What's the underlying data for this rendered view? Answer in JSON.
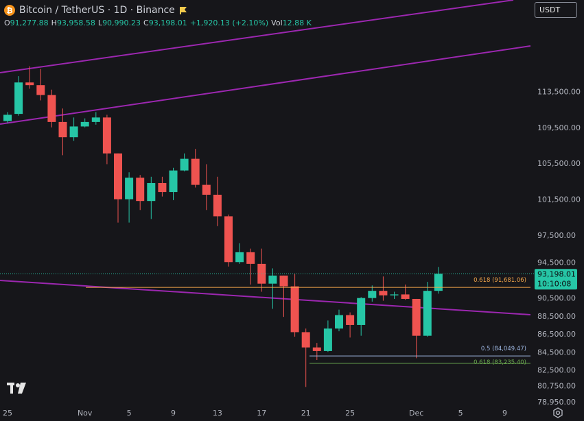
{
  "header": {
    "symbol_title": "Bitcoin / TetherUS · 1D · Binance",
    "ohlc": [
      {
        "key": "O",
        "value": "91,277.88"
      },
      {
        "key": "H",
        "value": "93,958.58"
      },
      {
        "key": "L",
        "value": "90,990.23"
      },
      {
        "key": "C",
        "value": "93,198.01"
      },
      {
        "key": "",
        "value": "+1,920.13 (+2.10%)"
      },
      {
        "key": "Vol",
        "value": "12.88 K"
      }
    ]
  },
  "currency_select": {
    "value": "USDT"
  },
  "colors": {
    "background": "#16161a",
    "up": "#26c6a6",
    "down": "#ef5350",
    "channel": "#9c27b0",
    "fib_orange": "#f2a54a",
    "fib_blue": "#9fb8e3",
    "fib_green": "#6aa84f"
  },
  "icons": {
    "logo": "tradingview-logo-icon",
    "settings": "settings-icon",
    "symbol": "bitcoin-icon"
  },
  "chart_data": {
    "type": "candlestick",
    "x_tick_labels": [
      "25",
      "Nov",
      "5",
      "9",
      "13",
      "17",
      "21",
      "25",
      "Dec",
      "5",
      "9"
    ],
    "y_tick_labels": [
      "113,500.00",
      "109,500.00",
      "105,500.00",
      "101,500.00",
      "97,500.00",
      "94,500.00",
      "90,500.00",
      "88,500.00",
      "86,500.00",
      "84,500.00",
      "82,500.00",
      "80,750.00",
      "78,950.00"
    ],
    "ylim": [
      78500,
      118500
    ],
    "current_price": {
      "price_label": "93,198.01",
      "countdown": "10:10:08"
    },
    "fib_levels": [
      {
        "label": "0.618 (91,681.06)",
        "price": 91681.06,
        "color": "#f2a54a"
      },
      {
        "label": "0.5 (84,049.47)",
        "price": 84049.47,
        "color": "#9fb8e3"
      },
      {
        "label": "0.618 (83,235.40)",
        "price": 83235.4,
        "color": "#6aa84f"
      }
    ],
    "candles": [
      {
        "date": "Oct 25",
        "o": 110200,
        "h": 111200,
        "l": 110000,
        "c": 110900
      },
      {
        "date": "Oct 26",
        "o": 111000,
        "h": 115200,
        "l": 110800,
        "c": 114500
      },
      {
        "date": "Oct 27",
        "o": 114500,
        "h": 116300,
        "l": 113800,
        "c": 114200
      },
      {
        "date": "Oct 28",
        "o": 114200,
        "h": 116000,
        "l": 112500,
        "c": 113100
      },
      {
        "date": "Oct 29",
        "o": 113100,
        "h": 113700,
        "l": 109500,
        "c": 110100
      },
      {
        "date": "Oct 30",
        "o": 110100,
        "h": 111600,
        "l": 106400,
        "c": 108400
      },
      {
        "date": "Oct 31",
        "o": 108400,
        "h": 110600,
        "l": 108000,
        "c": 109600
      },
      {
        "date": "Nov 1",
        "o": 109600,
        "h": 110500,
        "l": 109500,
        "c": 110100
      },
      {
        "date": "Nov 2",
        "o": 110100,
        "h": 111200,
        "l": 109800,
        "c": 110600
      },
      {
        "date": "Nov 3",
        "o": 110600,
        "h": 110900,
        "l": 105400,
        "c": 106600
      },
      {
        "date": "Nov 4",
        "o": 106600,
        "h": 106600,
        "l": 98900,
        "c": 101500
      },
      {
        "date": "Nov 5",
        "o": 101500,
        "h": 104500,
        "l": 98900,
        "c": 103900
      },
      {
        "date": "Nov 6",
        "o": 103900,
        "h": 104200,
        "l": 100300,
        "c": 101300
      },
      {
        "date": "Nov 7",
        "o": 101300,
        "h": 104000,
        "l": 99300,
        "c": 103300
      },
      {
        "date": "Nov 8",
        "o": 103300,
        "h": 104000,
        "l": 101800,
        "c": 102300
      },
      {
        "date": "Nov 9",
        "o": 102300,
        "h": 105000,
        "l": 101400,
        "c": 104700
      },
      {
        "date": "Nov 10",
        "o": 104700,
        "h": 106600,
        "l": 104600,
        "c": 106000
      },
      {
        "date": "Nov 11",
        "o": 106000,
        "h": 107100,
        "l": 102800,
        "c": 103100
      },
      {
        "date": "Nov 12",
        "o": 103100,
        "h": 105400,
        "l": 100300,
        "c": 102000
      },
      {
        "date": "Nov 13",
        "o": 102000,
        "h": 104000,
        "l": 98500,
        "c": 99600
      },
      {
        "date": "Nov 14",
        "o": 99600,
        "h": 99800,
        "l": 94000,
        "c": 94500
      },
      {
        "date": "Nov 15",
        "o": 94500,
        "h": 96600,
        "l": 94300,
        "c": 95600
      },
      {
        "date": "Nov 16",
        "o": 95600,
        "h": 96000,
        "l": 92000,
        "c": 94300
      },
      {
        "date": "Nov 17",
        "o": 94300,
        "h": 96000,
        "l": 91200,
        "c": 92100
      },
      {
        "date": "Nov 18",
        "o": 92100,
        "h": 93800,
        "l": 89300,
        "c": 93000
      },
      {
        "date": "Nov 19",
        "o": 93000,
        "h": 93000,
        "l": 88400,
        "c": 91800
      },
      {
        "date": "Nov 20",
        "o": 91800,
        "h": 93200,
        "l": 86200,
        "c": 86700
      },
      {
        "date": "Nov 21",
        "o": 86700,
        "h": 87100,
        "l": 80600,
        "c": 85000
      },
      {
        "date": "Nov 22",
        "o": 85000,
        "h": 85500,
        "l": 83600,
        "c": 84600
      },
      {
        "date": "Nov 23",
        "o": 84600,
        "h": 88000,
        "l": 84500,
        "c": 87100
      },
      {
        "date": "Nov 24",
        "o": 87100,
        "h": 89200,
        "l": 86800,
        "c": 88600
      },
      {
        "date": "Nov 25",
        "o": 88600,
        "h": 88900,
        "l": 86100,
        "c": 87500
      },
      {
        "date": "Nov 26",
        "o": 87500,
        "h": 90600,
        "l": 86300,
        "c": 90500
      },
      {
        "date": "Nov 27",
        "o": 90500,
        "h": 91900,
        "l": 90100,
        "c": 91300
      },
      {
        "date": "Nov 28",
        "o": 91300,
        "h": 92900,
        "l": 90200,
        "c": 90800
      },
      {
        "date": "Nov 29",
        "o": 90800,
        "h": 91200,
        "l": 90400,
        "c": 90900
      },
      {
        "date": "Nov 30",
        "o": 90900,
        "h": 92000,
        "l": 90300,
        "c": 90400
      },
      {
        "date": "Dec 1",
        "o": 90400,
        "h": 90400,
        "l": 83800,
        "c": 86300
      },
      {
        "date": "Dec 2",
        "o": 86300,
        "h": 92300,
        "l": 86200,
        "c": 91300
      },
      {
        "date": "Dec 3",
        "o": 91300,
        "h": 93960,
        "l": 90990,
        "c": 93200
      }
    ]
  }
}
